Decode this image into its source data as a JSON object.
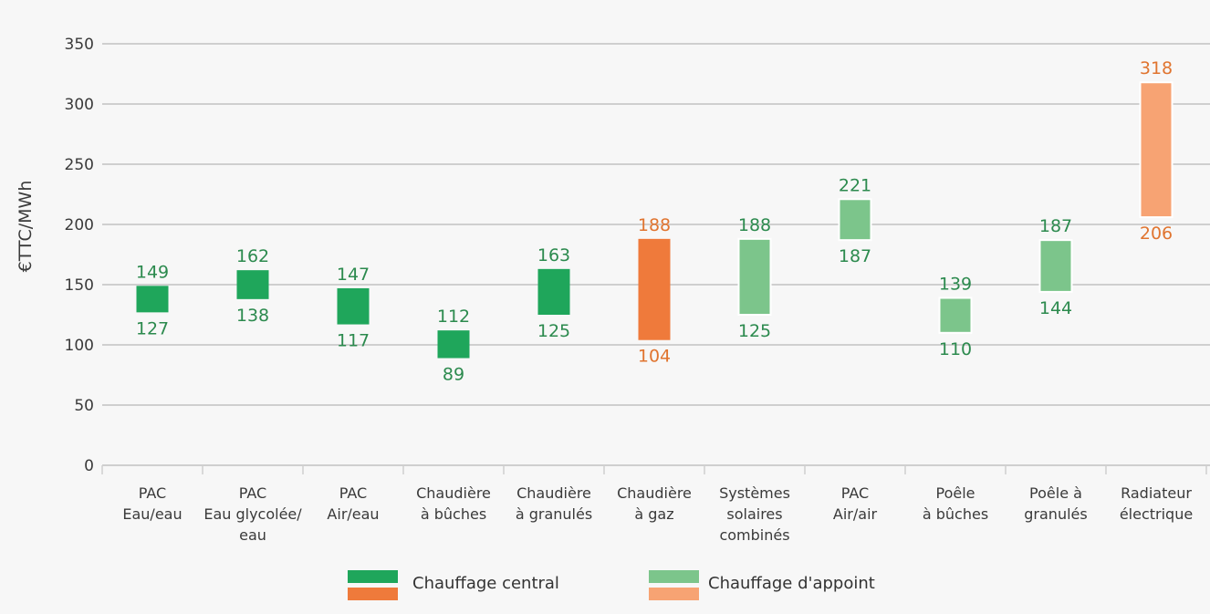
{
  "chart_data": {
    "type": "bar",
    "subtype": "floating-range",
    "ylabel": "€TTC/MWh",
    "ylim": [
      0,
      350
    ],
    "yticks": [
      0,
      50,
      100,
      150,
      200,
      250,
      300,
      350
    ],
    "grid": true,
    "legend_position": "bottom",
    "categories": [
      [
        "PAC",
        "Eau/eau"
      ],
      [
        "PAC",
        "Eau glycolée/",
        "eau"
      ],
      [
        "PAC",
        "Air/eau"
      ],
      [
        "Chaudière",
        "à bûches"
      ],
      [
        "Chaudière",
        "à granulés"
      ],
      [
        "Chaudière",
        "à gaz"
      ],
      [
        "Systèmes",
        "solaires",
        "combinés"
      ],
      [
        "PAC",
        "Air/air"
      ],
      [
        "Poêle",
        "à bûches"
      ],
      [
        "Poêle à",
        "granulés"
      ],
      [
        "Radiateur",
        "électrique"
      ]
    ],
    "ranges": [
      {
        "low": 127,
        "high": 149,
        "group": "central",
        "color_key": "dark_green"
      },
      {
        "low": 138,
        "high": 162,
        "group": "central",
        "color_key": "dark_green"
      },
      {
        "low": 117,
        "high": 147,
        "group": "central",
        "color_key": "dark_green"
      },
      {
        "low": 89,
        "high": 112,
        "group": "central",
        "color_key": "dark_green"
      },
      {
        "low": 125,
        "high": 163,
        "group": "central",
        "color_key": "dark_green"
      },
      {
        "low": 104,
        "high": 188,
        "group": "central",
        "color_key": "dark_orange"
      },
      {
        "low": 125,
        "high": 188,
        "group": "appoint",
        "color_key": "light_green"
      },
      {
        "low": 187,
        "high": 221,
        "group": "appoint",
        "color_key": "light_green"
      },
      {
        "low": 110,
        "high": 139,
        "group": "appoint",
        "color_key": "light_green"
      },
      {
        "low": 144,
        "high": 187,
        "group": "appoint",
        "color_key": "light_green"
      },
      {
        "low": 206,
        "high": 318,
        "group": "appoint",
        "color_key": "light_orange"
      }
    ],
    "legend": [
      {
        "label": "Chauffage central",
        "colors": [
          "dark_green",
          "dark_orange"
        ]
      },
      {
        "label": "Chauffage d'appoint",
        "colors": [
          "light_green",
          "light_orange"
        ]
      }
    ]
  },
  "colors": {
    "dark_green": "#1fa65b",
    "dark_orange": "#ef7a3b",
    "light_green": "#7cc58b",
    "light_orange": "#f7a373",
    "text_green": "#2c8a4e",
    "text_orange": "#e0742f"
  }
}
